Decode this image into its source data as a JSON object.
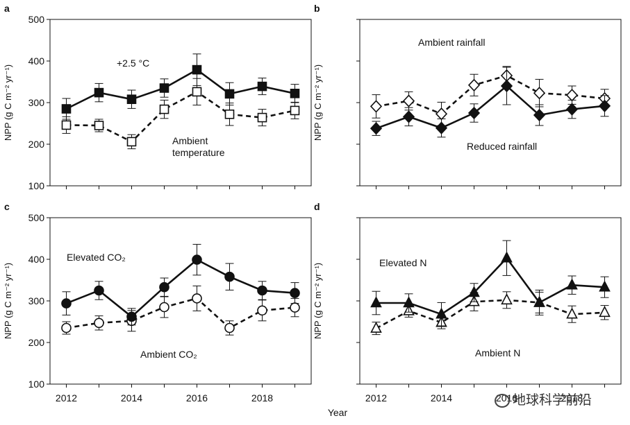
{
  "figure": {
    "shared_xlabel": "Year",
    "watermark": "地球科学前沿",
    "colors": {
      "line": "#111111",
      "axis": "#111111",
      "open_fill": "#ffffff"
    }
  },
  "chart_data": [
    {
      "panel": "a",
      "type": "line",
      "xlabel": "",
      "ylabel": "NPP (g C m⁻² yr⁻¹)",
      "ylim": [
        100,
        500
      ],
      "yticks": [
        100,
        200,
        300,
        400,
        500
      ],
      "xlim": [
        2011.5,
        2019.5
      ],
      "xticks": [
        2012,
        2014,
        2016,
        2018
      ],
      "show_xtick_labels": false,
      "show_ytick_labels": true,
      "x": [
        2012,
        2013,
        2014,
        2015,
        2016,
        2017,
        2018,
        2019
      ],
      "series": [
        {
          "name": "+2.5 °C",
          "marker": "square",
          "filled": true,
          "dashed": false,
          "values": [
            285,
            324,
            308,
            335,
            379,
            321,
            339,
            322
          ],
          "errors": [
            25,
            22,
            22,
            22,
            38,
            27,
            20,
            22
          ]
        },
        {
          "name": "Ambient temperature",
          "marker": "square",
          "filled": false,
          "dashed": true,
          "values": [
            246,
            245,
            206,
            284,
            326,
            272,
            264,
            281
          ],
          "errors": [
            20,
            15,
            17,
            22,
            32,
            27,
            20,
            20
          ]
        }
      ],
      "annotations": [
        {
          "text": "+2.5 °C",
          "near": "upper-left"
        },
        {
          "text": "Ambient\ntemperature",
          "near": "lower-middle"
        }
      ]
    },
    {
      "panel": "b",
      "type": "line",
      "xlabel": "",
      "ylabel": "NPP (g C m⁻² yr⁻¹)",
      "ylim": [
        100,
        500
      ],
      "yticks": [
        100,
        200,
        300,
        400,
        500
      ],
      "xlim": [
        2011.5,
        2019.5
      ],
      "xticks": [
        2012,
        2014,
        2016,
        2018
      ],
      "show_xtick_labels": false,
      "show_ytick_labels": false,
      "x": [
        2012,
        2013,
        2014,
        2015,
        2016,
        2017,
        2018,
        2019
      ],
      "series": [
        {
          "name": "Ambient rainfall",
          "marker": "diamond",
          "filled": false,
          "dashed": true,
          "values": [
            291,
            304,
            273,
            342,
            365,
            323,
            318,
            310
          ],
          "errors": [
            28,
            22,
            28,
            26,
            22,
            33,
            22,
            22
          ]
        },
        {
          "name": "Reduced rainfall",
          "marker": "diamond",
          "filled": true,
          "dashed": false,
          "values": [
            238,
            266,
            239,
            275,
            340,
            270,
            284,
            292
          ],
          "errors": [
            17,
            22,
            22,
            22,
            45,
            25,
            22,
            25
          ]
        }
      ],
      "annotations": [
        {
          "text": "Ambient rainfall",
          "near": "top-middle"
        },
        {
          "text": "Reduced rainfall",
          "near": "lower-middle"
        }
      ]
    },
    {
      "panel": "c",
      "type": "line",
      "xlabel": "",
      "ylabel": "NPP (g C m⁻² yr⁻¹)",
      "ylim": [
        100,
        500
      ],
      "yticks": [
        100,
        200,
        300,
        400,
        500
      ],
      "xlim": [
        2011.5,
        2019.5
      ],
      "xticks": [
        2012,
        2014,
        2016,
        2018
      ],
      "show_xtick_labels": true,
      "show_ytick_labels": true,
      "x": [
        2012,
        2013,
        2014,
        2015,
        2016,
        2017,
        2018,
        2019
      ],
      "series": [
        {
          "name": "Elevated CO₂",
          "marker": "circle",
          "filled": true,
          "dashed": false,
          "values": [
            294,
            325,
            262,
            333,
            399,
            358,
            325,
            319
          ],
          "errors": [
            28,
            22,
            20,
            22,
            37,
            32,
            22,
            25
          ]
        },
        {
          "name": "Ambient CO₂",
          "marker": "circle",
          "filled": false,
          "dashed": true,
          "values": [
            235,
            247,
            252,
            285,
            306,
            235,
            277,
            284
          ],
          "errors": [
            15,
            17,
            25,
            25,
            30,
            17,
            25,
            22
          ]
        }
      ],
      "annotations": [
        {
          "text": "Elevated CO₂",
          "near": "upper-left"
        },
        {
          "text": "Ambient CO₂",
          "near": "lower-middle"
        }
      ]
    },
    {
      "panel": "d",
      "type": "line",
      "xlabel": "",
      "ylabel": "NPP (g C m⁻² yr⁻¹)",
      "ylim": [
        100,
        500
      ],
      "yticks": [
        100,
        200,
        300,
        400,
        500
      ],
      "xlim": [
        2011.5,
        2019.5
      ],
      "xticks": [
        2012,
        2014,
        2016,
        2018
      ],
      "show_xtick_labels": true,
      "show_ytick_labels": false,
      "x": [
        2012,
        2013,
        2014,
        2015,
        2016,
        2017,
        2018,
        2019
      ],
      "series": [
        {
          "name": "Elevated N",
          "marker": "triangle",
          "filled": true,
          "dashed": false,
          "values": [
            295,
            295,
            268,
            320,
            403,
            296,
            338,
            333
          ],
          "errors": [
            28,
            22,
            28,
            22,
            42,
            30,
            22,
            25
          ]
        },
        {
          "name": "Ambient N",
          "marker": "triangle",
          "filled": false,
          "dashed": true,
          "values": [
            234,
            276,
            248,
            298,
            302,
            296,
            268,
            272
          ],
          "errors": [
            15,
            15,
            15,
            22,
            20,
            25,
            20,
            17
          ]
        }
      ],
      "annotations": [
        {
          "text": "Elevated N",
          "near": "upper-left"
        },
        {
          "text": "Ambient N",
          "near": "lower-middle"
        }
      ]
    }
  ]
}
